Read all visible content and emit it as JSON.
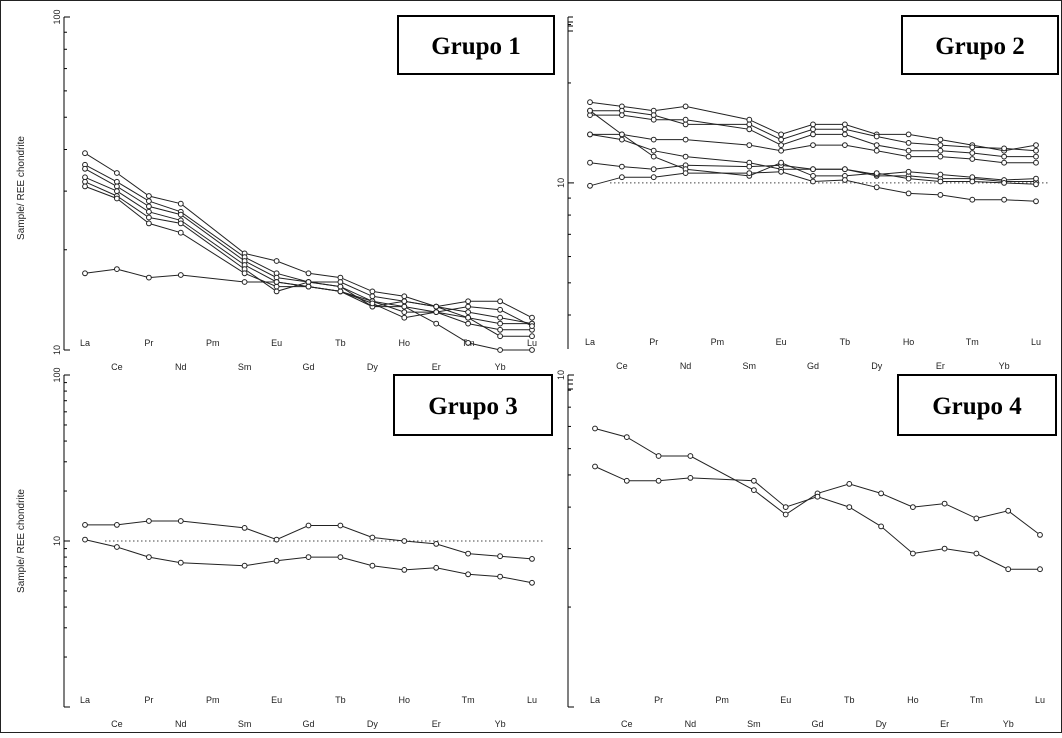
{
  "y_axis_label": "Sample/ REE chondrite",
  "elements": [
    "La",
    "Ce",
    "Pr",
    "Nd",
    "Pm",
    "Sm",
    "Eu",
    "Gd",
    "Tb",
    "Dy",
    "Ho",
    "Er",
    "Tm",
    "Yb",
    "Lu"
  ],
  "chart_data": [
    {
      "type": "line",
      "title": "Grupo 1",
      "ylabel": "Sample/ REE chondrite",
      "yscale": "log",
      "ylim": [
        10,
        100
      ],
      "ytick_labels": [
        "100",
        "10"
      ],
      "reference_line": null,
      "x": [
        "La",
        "Ce",
        "Pr",
        "Nd",
        "Sm",
        "Eu",
        "Gd",
        "Tb",
        "Dy",
        "Ho",
        "Er",
        "Tm",
        "Yb",
        "Lu"
      ],
      "series": [
        {
          "values": [
            39,
            34,
            29,
            27.5,
            19.5,
            18.5,
            17,
            16.5,
            15,
            14.5,
            13.5,
            13,
            12.5,
            12
          ]
        },
        {
          "values": [
            36,
            32,
            28,
            26,
            19,
            17,
            16,
            16,
            14.5,
            14,
            13.5,
            14,
            14,
            12.5
          ]
        },
        {
          "values": [
            35,
            31,
            27,
            25.5,
            18.5,
            16.5,
            16,
            15.5,
            14,
            13.5,
            13,
            12.5,
            12,
            12
          ]
        },
        {
          "values": [
            33,
            30,
            26,
            24.5,
            18,
            16,
            15.5,
            15,
            14,
            13,
            13,
            12,
            11.5,
            11.5
          ]
        },
        {
          "values": [
            32,
            29,
            25,
            24,
            17.5,
            15,
            16,
            15.5,
            13.5,
            14,
            13.5,
            12.5,
            11,
            11
          ]
        },
        {
          "values": [
            31,
            28.5,
            24,
            22.5,
            17,
            15.5,
            15.5,
            15,
            13.5,
            13.5,
            12,
            10.5,
            10,
            10
          ]
        },
        {
          "values": [
            17,
            17.5,
            16.5,
            16.8,
            16,
            16,
            15.5,
            15,
            13.8,
            12.5,
            13,
            13.5,
            13.2,
            11.8
          ]
        }
      ]
    },
    {
      "type": "line",
      "title": "Grupo 2",
      "ylabel": "",
      "yscale": "log",
      "ylim": [
        3.16,
        31.6
      ],
      "ytick_labels": [
        "10"
      ],
      "reference_line": 10,
      "x": [
        "La",
        "Ce",
        "Pr",
        "Nd",
        "Sm",
        "Eu",
        "Gd",
        "Tb",
        "Dy",
        "Ho",
        "Er",
        "Tm",
        "Yb",
        "Lu"
      ],
      "series": [
        {
          "values": [
            17.5,
            17,
            16.5,
            17,
            15.5,
            14,
            15,
            15,
            14,
            14,
            13.5,
            13,
            12.5,
            13
          ]
        },
        {
          "values": [
            16.5,
            16.5,
            16,
            15,
            15,
            13.5,
            14.5,
            14.5,
            13.8,
            13.2,
            13,
            12.8,
            12.7,
            12.5
          ]
        },
        {
          "values": [
            16,
            16,
            15.5,
            15.5,
            14.5,
            13,
            14,
            14,
            13,
            12.5,
            12.5,
            12.3,
            12,
            12
          ]
        },
        {
          "values": [
            14,
            14,
            13.5,
            13.5,
            13,
            12.5,
            13,
            13,
            12.5,
            12,
            12,
            11.8,
            11.5,
            11.5
          ]
        },
        {
          "values": [
            14,
            13.5,
            12.5,
            12,
            11.5,
            11,
            11,
            11,
            10.5,
            10.5,
            10.3,
            10.3,
            10.1,
            10.1
          ]
        },
        {
          "values": [
            11.5,
            11.2,
            11,
            11.3,
            11.2,
            11.3,
            11,
            11,
            10.6,
            10.8,
            10.6,
            10.4,
            10.2,
            10.3
          ]
        },
        {
          "values": [
            16.5,
            14,
            12,
            11,
            10.5,
            11.5,
            10.5,
            10.5,
            10.7,
            10.3,
            10.1,
            10.1,
            10,
            9.9
          ]
        },
        {
          "values": [
            9.8,
            10.4,
            10.4,
            10.7,
            10.7,
            10.8,
            10.1,
            10.2,
            9.7,
            9.3,
            9.2,
            8.9,
            8.9,
            8.8
          ]
        }
      ]
    },
    {
      "type": "line",
      "title": "Grupo 3",
      "ylabel": "Sample/ REE chondrite",
      "yscale": "log",
      "ylim": [
        1,
        100
      ],
      "ytick_labels": [
        "100",
        "10"
      ],
      "reference_line": 10,
      "x": [
        "La",
        "Ce",
        "Pr",
        "Nd",
        "Sm",
        "Eu",
        "Gd",
        "Tb",
        "Dy",
        "Ho",
        "Er",
        "Tm",
        "Yb",
        "Lu"
      ],
      "series": [
        {
          "values": [
            12.5,
            12.5,
            13.2,
            13.2,
            12,
            10.2,
            12.4,
            12.4,
            10.5,
            10,
            9.6,
            8.4,
            8.1,
            7.8
          ]
        },
        {
          "values": [
            10.2,
            9.2,
            8,
            7.4,
            7.1,
            7.6,
            8,
            8,
            7.1,
            6.7,
            6.9,
            6.3,
            6.1,
            5.6
          ]
        }
      ]
    },
    {
      "type": "line",
      "title": "Grupo 4",
      "ylabel": "",
      "yscale": "log",
      "ylim": [
        1,
        10
      ],
      "ytick_labels": [
        "10"
      ],
      "reference_line": null,
      "x": [
        "La",
        "Ce",
        "Pr",
        "Nd",
        "Sm",
        "Eu",
        "Gd",
        "Tb",
        "Dy",
        "Ho",
        "Er",
        "Tm",
        "Yb",
        "Lu"
      ],
      "series": [
        {
          "values": [
            6.9,
            6.5,
            5.7,
            5.7,
            4.5,
            3.8,
            4.4,
            4.7,
            4.4,
            4.0,
            4.1,
            3.7,
            3.9,
            3.3
          ]
        },
        {
          "values": [
            5.3,
            4.8,
            4.8,
            4.9,
            4.8,
            4.0,
            4.3,
            4.0,
            3.5,
            2.9,
            3.0,
            2.9,
            2.6,
            2.6
          ]
        }
      ]
    }
  ]
}
